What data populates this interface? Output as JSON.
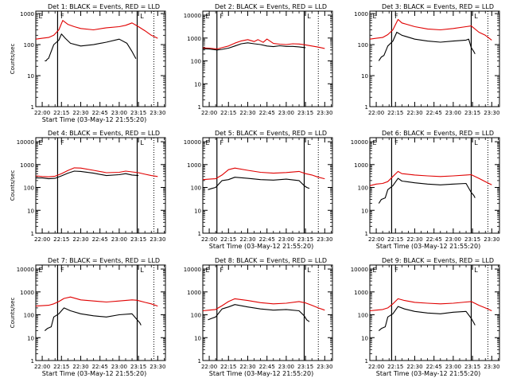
{
  "figure": {
    "colors": {
      "events": "#000000",
      "lld": "#e00000",
      "axes": "#000000"
    }
  },
  "chart_data": [
    {
      "type": "line",
      "title": "Det 1: BLACK = Events, RED = LLD",
      "ylabel": "Counts/sec",
      "xlabel": "Start Time (03-May-12 21:55:20)",
      "xticks": [
        "22:00",
        "22:15",
        "22:30",
        "22:45",
        "23:00",
        "23:15",
        "23:30"
      ],
      "yticks": [
        "1",
        "10",
        "100",
        "1000"
      ],
      "ylim": [
        1,
        1200
      ],
      "yscale": "log",
      "solid_markers": [
        "22:12",
        "23:14"
      ],
      "dotted_markers": [
        "23:27"
      ],
      "attenuator_labels": [
        "E",
        "F",
        "L"
      ],
      "series": [
        {
          "name": "Events",
          "color": "#000000",
          "x": [
            "22:02",
            "22:03",
            "22:04",
            "22:05",
            "22:09",
            "22:13",
            "22:15",
            "22:18",
            "22:22",
            "22:30",
            "22:40",
            "22:50",
            "23:00",
            "23:06",
            "23:10",
            "23:13"
          ],
          "values": [
            30,
            30,
            34,
            36,
            100,
            140,
            220,
            160,
            110,
            90,
            100,
            120,
            150,
            110,
            60,
            35
          ]
        },
        {
          "name": "LLD",
          "color": "#e00000",
          "x": [
            "21:55",
            "22:00",
            "22:05",
            "22:09",
            "22:13",
            "22:16",
            "22:20",
            "22:25",
            "22:30",
            "22:40",
            "22:50",
            "23:00",
            "23:05",
            "23:10",
            "23:15",
            "23:20",
            "23:25",
            "23:30"
          ],
          "values": [
            150,
            160,
            170,
            200,
            300,
            600,
            450,
            380,
            330,
            300,
            350,
            380,
            420,
            500,
            380,
            280,
            200,
            160
          ]
        }
      ]
    },
    {
      "type": "line",
      "title": "Det 2: BLACK = Events, RED = LLD",
      "ylabel": "",
      "xlabel": "",
      "xticks": [
        "22:00",
        "22:15",
        "22:30",
        "22:45",
        "23:00",
        "23:15",
        "23:30"
      ],
      "yticks": [
        "1",
        "10",
        "100",
        "1000",
        "10000"
      ],
      "ylim": [
        1,
        15000
      ],
      "yscale": "log",
      "solid_markers": [
        "22:06",
        "23:14"
      ],
      "dotted_markers": [
        "23:25"
      ],
      "attenuator_labels": [
        "E",
        "F",
        "L"
      ],
      "series": [
        {
          "name": "Events",
          "color": "#000000",
          "x": [
            "21:55",
            "22:00",
            "22:06",
            "22:10",
            "22:15",
            "22:20",
            "22:25",
            "22:30",
            "22:35",
            "22:40",
            "22:45",
            "22:50",
            "22:55",
            "23:00",
            "23:05",
            "23:10",
            "23:15"
          ],
          "values": [
            340,
            330,
            300,
            320,
            360,
            450,
            560,
            620,
            560,
            520,
            450,
            420,
            460,
            430,
            430,
            410,
            380
          ]
        },
        {
          "name": "LLD",
          "color": "#e00000",
          "x": [
            "21:55",
            "22:00",
            "22:06",
            "22:10",
            "22:15",
            "22:20",
            "22:25",
            "22:30",
            "22:35",
            "22:38",
            "22:42",
            "22:45",
            "22:50",
            "22:55",
            "23:00",
            "23:05",
            "23:10",
            "23:15",
            "23:20",
            "23:25",
            "23:30"
          ],
          "values": [
            370,
            360,
            330,
            380,
            450,
            600,
            750,
            850,
            700,
            850,
            650,
            900,
            580,
            540,
            520,
            560,
            550,
            500,
            450,
            400,
            350
          ]
        }
      ]
    },
    {
      "type": "line",
      "title": "Det 3: BLACK = Events, RED = LLD",
      "ylabel": "",
      "xlabel": "",
      "xticks": [
        "22:00",
        "22:15",
        "22:30",
        "22:45",
        "23:00",
        "23:15",
        "23:30"
      ],
      "yticks": [
        "1",
        "10",
        "100",
        "1000"
      ],
      "ylim": [
        1,
        1200
      ],
      "yscale": "log",
      "solid_markers": [
        "22:12",
        "23:14"
      ],
      "dotted_markers": [
        "23:27"
      ],
      "attenuator_labels": [
        "E",
        "F",
        "L"
      ],
      "series": [
        {
          "name": "Events",
          "color": "#000000",
          "x": [
            "22:02",
            "22:04",
            "22:06",
            "22:09",
            "22:13",
            "22:16",
            "22:20",
            "22:30",
            "22:40",
            "22:50",
            "23:00",
            "23:10",
            "23:12",
            "23:14",
            "23:16",
            "23:17"
          ],
          "values": [
            30,
            40,
            45,
            90,
            130,
            250,
            200,
            150,
            130,
            120,
            130,
            140,
            150,
            80,
            60,
            50
          ]
        },
        {
          "name": "LLD",
          "color": "#e00000",
          "x": [
            "21:55",
            "22:00",
            "22:05",
            "22:09",
            "22:13",
            "22:17",
            "22:20",
            "22:30",
            "22:40",
            "22:50",
            "23:00",
            "23:10",
            "23:14",
            "23:20",
            "23:25",
            "23:30"
          ],
          "values": [
            150,
            160,
            170,
            210,
            300,
            650,
            500,
            380,
            320,
            300,
            330,
            380,
            400,
            250,
            200,
            140
          ]
        }
      ]
    },
    {
      "type": "line",
      "title": "Det 4: BLACK = Events, RED = LLD",
      "ylabel": "Counts/sec",
      "xlabel": "",
      "xticks": [
        "22:00",
        "22:15",
        "22:30",
        "22:45",
        "23:00",
        "23:15",
        "23:30"
      ],
      "yticks": [
        "1",
        "10",
        "100",
        "1000",
        "10000"
      ],
      "ylim": [
        1,
        15000
      ],
      "yscale": "log",
      "solid_markers": [
        "22:12",
        "23:14"
      ],
      "dotted_markers": [
        "23:27"
      ],
      "attenuator_labels": [
        "E",
        "F",
        "L"
      ],
      "series": [
        {
          "name": "Events",
          "color": "#000000",
          "x": [
            "21:55",
            "22:00",
            "22:05",
            "22:10",
            "22:15",
            "22:20",
            "22:25",
            "22:30",
            "22:40",
            "22:50",
            "23:00",
            "23:05",
            "23:10",
            "23:15"
          ],
          "values": [
            260,
            260,
            240,
            250,
            320,
            420,
            520,
            500,
            420,
            330,
            360,
            400,
            350,
            330
          ]
        },
        {
          "name": "LLD",
          "color": "#e00000",
          "x": [
            "21:55",
            "22:00",
            "22:05",
            "22:10",
            "22:15",
            "22:20",
            "22:25",
            "22:30",
            "22:40",
            "22:50",
            "23:00",
            "23:05",
            "23:10",
            "23:15",
            "23:20",
            "23:25",
            "23:30"
          ],
          "values": [
            320,
            300,
            290,
            310,
            400,
            550,
            720,
            700,
            560,
            440,
            460,
            520,
            480,
            440,
            380,
            330,
            300
          ]
        }
      ]
    },
    {
      "type": "line",
      "title": "Det 5: BLACK = Events, RED = LLD",
      "ylabel": "",
      "xlabel": "Start Time (03-May-12 21:55:20)",
      "xticks": [
        "22:00",
        "22:15",
        "22:30",
        "22:45",
        "23:00",
        "23:15",
        "23:30"
      ],
      "yticks": [
        "1",
        "10",
        "100",
        "1000",
        "10000"
      ],
      "ylim": [
        1,
        15000
      ],
      "yscale": "log",
      "solid_markers": [
        "22:06",
        "23:14"
      ],
      "dotted_markers": [
        "23:25"
      ],
      "attenuator_labels": [
        "E",
        "F",
        "L"
      ],
      "series": [
        {
          "name": "Events",
          "color": "#000000",
          "x": [
            "21:59",
            "22:02",
            "22:05",
            "22:10",
            "22:15",
            "22:20",
            "22:30",
            "22:40",
            "22:50",
            "23:00",
            "23:10",
            "23:14",
            "23:16",
            "23:18"
          ],
          "values": [
            80,
            90,
            100,
            200,
            220,
            280,
            250,
            220,
            210,
            230,
            200,
            120,
            100,
            90
          ]
        },
        {
          "name": "LLD",
          "color": "#e00000",
          "x": [
            "21:55",
            "22:00",
            "22:05",
            "22:10",
            "22:15",
            "22:20",
            "22:30",
            "22:40",
            "22:50",
            "23:00",
            "23:10",
            "23:15",
            "23:20",
            "23:25",
            "23:30"
          ],
          "values": [
            220,
            230,
            240,
            350,
            600,
            700,
            560,
            460,
            420,
            450,
            500,
            400,
            350,
            280,
            240
          ]
        }
      ]
    },
    {
      "type": "line",
      "title": "Det 6: BLACK = Events, RED = LLD",
      "ylabel": "",
      "xlabel": "Start Time (03-May-12 21:55:20)",
      "xticks": [
        "22:00",
        "22:15",
        "22:30",
        "22:45",
        "23:00",
        "23:15",
        "23:30"
      ],
      "yticks": [
        "1",
        "10",
        "100",
        "1000",
        "10000"
      ],
      "ylim": [
        1,
        15000
      ],
      "yscale": "log",
      "solid_markers": [
        "22:12",
        "23:14"
      ],
      "dotted_markers": [
        "23:27"
      ],
      "attenuator_labels": [
        "E",
        "F",
        "L"
      ],
      "series": [
        {
          "name": "Events",
          "color": "#000000",
          "x": [
            "22:02",
            "22:04",
            "22:07",
            "22:09",
            "22:13",
            "22:17",
            "22:20",
            "22:30",
            "22:40",
            "22:50",
            "23:00",
            "23:10",
            "23:14",
            "23:16",
            "23:17"
          ],
          "values": [
            20,
            30,
            35,
            80,
            120,
            250,
            190,
            160,
            140,
            130,
            140,
            150,
            60,
            45,
            35
          ]
        },
        {
          "name": "LLD",
          "color": "#e00000",
          "x": [
            "21:55",
            "22:00",
            "22:05",
            "22:09",
            "22:13",
            "22:17",
            "22:20",
            "22:30",
            "22:40",
            "22:50",
            "23:00",
            "23:10",
            "23:14",
            "23:20",
            "23:25",
            "23:30"
          ],
          "values": [
            120,
            140,
            150,
            180,
            300,
            500,
            400,
            350,
            320,
            300,
            320,
            350,
            360,
            250,
            180,
            130
          ]
        }
      ]
    },
    {
      "type": "line",
      "title": "Det 7: BLACK = Events, RED = LLD",
      "ylabel": "Counts/sec",
      "xlabel": "Start Time (03-May-12 21:55:20)",
      "xticks": [
        "22:00",
        "22:15",
        "22:30",
        "22:45",
        "23:00",
        "23:15",
        "23:30"
      ],
      "yticks": [
        "1",
        "10",
        "100",
        "1000",
        "10000"
      ],
      "ylim": [
        1,
        15000
      ],
      "yscale": "log",
      "solid_markers": [
        "22:12",
        "23:14"
      ],
      "dotted_markers": [
        "23:27"
      ],
      "attenuator_labels": [
        "E",
        "F",
        "L"
      ],
      "series": [
        {
          "name": "Events",
          "color": "#000000",
          "x": [
            "22:02",
            "22:04",
            "22:07",
            "22:09",
            "22:13",
            "22:17",
            "22:22",
            "22:30",
            "22:40",
            "22:50",
            "23:00",
            "23:10",
            "23:14",
            "23:16",
            "23:17"
          ],
          "values": [
            20,
            25,
            30,
            80,
            110,
            200,
            150,
            110,
            90,
            80,
            100,
            110,
            60,
            45,
            35
          ]
        },
        {
          "name": "LLD",
          "color": "#e00000",
          "x": [
            "21:55",
            "22:00",
            "22:05",
            "22:09",
            "22:13",
            "22:17",
            "22:22",
            "22:30",
            "22:40",
            "22:50",
            "23:00",
            "23:10",
            "23:14",
            "23:20",
            "23:25",
            "23:30"
          ],
          "values": [
            240,
            250,
            260,
            300,
            380,
            520,
            600,
            450,
            400,
            360,
            400,
            450,
            430,
            350,
            300,
            240
          ]
        }
      ]
    },
    {
      "type": "line",
      "title": "Det 8: BLACK = Events, RED = LLD",
      "ylabel": "",
      "xlabel": "Start Time (03-May-12 21:55:20)",
      "xticks": [
        "22:00",
        "22:15",
        "22:30",
        "22:45",
        "23:00",
        "23:15",
        "23:30"
      ],
      "yticks": [
        "1",
        "10",
        "100",
        "1000",
        "10000"
      ],
      "ylim": [
        1,
        15000
      ],
      "yscale": "log",
      "solid_markers": [
        "22:06",
        "23:14"
      ],
      "dotted_markers": [
        "23:25"
      ],
      "attenuator_labels": [
        "E",
        "F",
        "L"
      ],
      "series": [
        {
          "name": "Events",
          "color": "#000000",
          "x": [
            "21:59",
            "22:02",
            "22:05",
            "22:10",
            "22:15",
            "22:20",
            "22:30",
            "22:40",
            "22:50",
            "23:00",
            "23:10",
            "23:14",
            "23:16",
            "23:18"
          ],
          "values": [
            60,
            70,
            80,
            180,
            220,
            280,
            220,
            180,
            160,
            170,
            150,
            90,
            60,
            50
          ]
        },
        {
          "name": "LLD",
          "color": "#e00000",
          "x": [
            "21:55",
            "22:00",
            "22:05",
            "22:10",
            "22:15",
            "22:20",
            "22:30",
            "22:40",
            "22:50",
            "23:00",
            "23:10",
            "23:15",
            "23:20",
            "23:25",
            "23:30"
          ],
          "values": [
            150,
            160,
            170,
            250,
            380,
            500,
            420,
            340,
            300,
            320,
            380,
            330,
            260,
            200,
            160
          ]
        }
      ]
    },
    {
      "type": "line",
      "title": "Det 9: BLACK = Events, RED = LLD",
      "ylabel": "",
      "xlabel": "Start Time (03-May-12 21:55:20)",
      "xticks": [
        "22:00",
        "22:15",
        "22:30",
        "22:45",
        "23:00",
        "23:15",
        "23:30"
      ],
      "yticks": [
        "1",
        "10",
        "100",
        "1000",
        "10000"
      ],
      "ylim": [
        1,
        15000
      ],
      "yscale": "log",
      "solid_markers": [
        "22:12",
        "23:14"
      ],
      "dotted_markers": [
        "23:27"
      ],
      "attenuator_labels": [
        "E",
        "F",
        "L"
      ],
      "series": [
        {
          "name": "Events",
          "color": "#000000",
          "x": [
            "22:02",
            "22:04",
            "22:07",
            "22:09",
            "22:13",
            "22:17",
            "22:22",
            "22:30",
            "22:40",
            "22:50",
            "23:00",
            "23:10",
            "23:14",
            "23:16",
            "23:17"
          ],
          "values": [
            20,
            25,
            30,
            80,
            110,
            230,
            180,
            140,
            120,
            110,
            130,
            140,
            70,
            45,
            35
          ]
        },
        {
          "name": "LLD",
          "color": "#e00000",
          "x": [
            "21:55",
            "22:00",
            "22:05",
            "22:09",
            "22:13",
            "22:17",
            "22:22",
            "22:30",
            "22:40",
            "22:50",
            "23:00",
            "23:10",
            "23:14",
            "23:20",
            "23:25",
            "23:30"
          ],
          "values": [
            150,
            160,
            170,
            200,
            300,
            500,
            420,
            350,
            320,
            300,
            320,
            360,
            380,
            260,
            200,
            150
          ]
        }
      ]
    }
  ]
}
